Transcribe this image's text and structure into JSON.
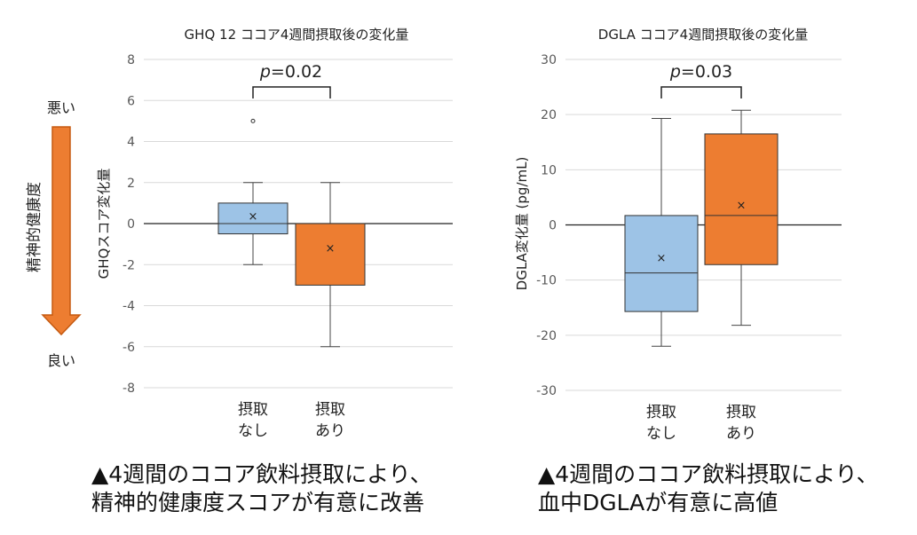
{
  "indicator": {
    "top_label": "悪い",
    "bottom_label": "良い",
    "axis_label": "精神的健康度",
    "arrow_color": "#ED7D31",
    "arrow_stroke": "#C55A11"
  },
  "chart_data": [
    {
      "type": "box",
      "title": "GHQ 12 ココア4週間摂取後の変化量",
      "ylabel": "GHQスコア変化量",
      "xlabel": "",
      "ylim": [
        -8,
        8
      ],
      "yticks": [
        -8,
        -6,
        -4,
        -2,
        0,
        2,
        4,
        6,
        8
      ],
      "grid": true,
      "categories": [
        {
          "line1": "摂取",
          "line2": "なし",
          "color": "#9DC3E6",
          "min": -2,
          "q1": -0.5,
          "median": 0,
          "q3": 1,
          "max": 2,
          "mean": 0.35,
          "outliers": [
            5
          ]
        },
        {
          "line1": "摂取",
          "line2": "あり",
          "color": "#ED7D31",
          "min": -6,
          "q1": -3,
          "median": 0,
          "q3": 0,
          "max": 2,
          "mean": -1.2,
          "outliers": []
        }
      ],
      "significance": {
        "p_italic": "p",
        "p_text": "=0.02"
      }
    },
    {
      "type": "box",
      "title": "DGLA ココア4週間摂取後の変化量",
      "ylabel": "DGLA変化量 (pg/mL)",
      "xlabel": "",
      "ylim": [
        -30,
        30
      ],
      "yticks": [
        -30,
        -20,
        -10,
        0,
        10,
        20,
        30
      ],
      "grid": true,
      "categories": [
        {
          "line1": "摂取",
          "line2": "なし",
          "color": "#9DC3E6",
          "min": -22,
          "q1": -15.7,
          "median": -8.7,
          "q3": 1.7,
          "max": 19.3,
          "mean": -6,
          "outliers": []
        },
        {
          "line1": "摂取",
          "line2": "あり",
          "color": "#ED7D31",
          "min": -18.2,
          "q1": -7.2,
          "median": 1.7,
          "q3": 16.5,
          "max": 20.8,
          "mean": 3.5,
          "outliers": []
        }
      ],
      "significance": {
        "p_italic": "p",
        "p_text": "=0.03"
      }
    }
  ],
  "captions": {
    "left": [
      "▲4週間のココア飲料摂取により、",
      "精神的健康度スコアが有意に改善"
    ],
    "right": [
      "▲4週間のココア飲料摂取により、",
      "血中DGLAが有意に高値"
    ]
  }
}
